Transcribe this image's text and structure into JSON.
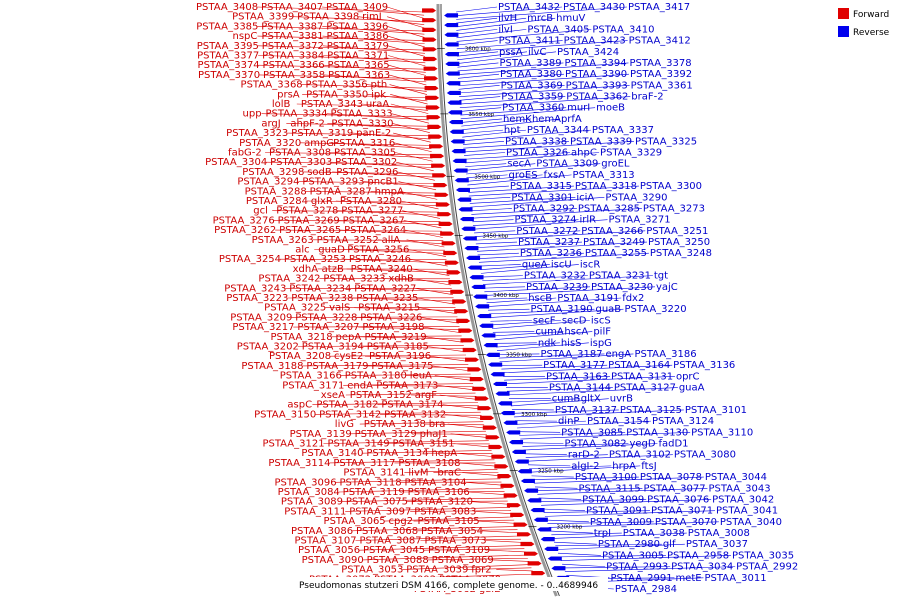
{
  "legend": {
    "items": [
      {
        "label": "Forward",
        "color": "#e00000"
      },
      {
        "label": "Reverse",
        "color": "#0000ee"
      }
    ]
  },
  "caption": "Pseudomonas stutzeri DSM 4166, complete genome. - 0..4689946",
  "colors": {
    "forward": "#e00000",
    "reverse": "#0000ee",
    "backbone": "#999999"
  },
  "ticks": [
    {
      "text": "3600 kbp",
      "pos": 0.075
    },
    {
      "text": "3550 kbp",
      "pos": 0.185
    },
    {
      "text": "3500 kbp",
      "pos": 0.29
    },
    {
      "text": "3450 kbp",
      "pos": 0.39
    },
    {
      "text": "3400 kbp",
      "pos": 0.49
    },
    {
      "text": "3350 kbp",
      "pos": 0.59
    },
    {
      "text": "3300 kbp",
      "pos": 0.69
    },
    {
      "text": "3250 kbp",
      "pos": 0.785
    },
    {
      "text": "3200 kbp",
      "pos": 0.88
    }
  ],
  "forward_genes": [
    "PSTAA_3408",
    "PSTAA_3407",
    "PSTAA_3409",
    "PSTAA_3399",
    "PSTAA_3398",
    "rimI",
    "PSTAA_3385",
    "PSTAA_3387",
    "PSTAA_3396",
    "nspC",
    "PSTAA_3381",
    "PSTAA_3386",
    "PSTAA_3395",
    "PSTAA_3372",
    "PSTAA_3379",
    "PSTAA_3377",
    "PSTAA_3384",
    "PSTAA_3371",
    "PSTAA_3374",
    "PSTAA_3366",
    "PSTAA_3365",
    "PSTAA_3370",
    "PSTAA_3358",
    "PSTAA_3363",
    "PSTAA_3368",
    "PSTAA_3356",
    "pth",
    "prsA",
    "PSTAA_3350",
    "ipk",
    "lolB",
    "PSTAA_3343",
    "uraA",
    "upp",
    "PSTAA_3334",
    "PSTAA_3333",
    "argJ",
    "ahpF-2",
    "PSTAA_3330",
    "PSTAA_3323",
    "PSTAA_3319",
    "panE-2",
    "PSTAA_3320",
    "ampG",
    "PSTAA_3316",
    "fabG-2",
    "PSTAA_3308",
    "PSTAA_3305",
    "PSTAA_3304",
    "PSTAA_3303",
    "PSTAA_3302",
    "PSTAA_3298",
    "sodB",
    "PSTAA_3296",
    "PSTAA_3294",
    "PSTAA_3293",
    "pncB1",
    "PSTAA_3288",
    "PSTAA_3287",
    "hmpA",
    "PSTAA_3284",
    "glxR",
    "PSTAA_3280",
    "gcl",
    "PSTAA_3278",
    "PSTAA_3277",
    "PSTAA_3276",
    "PSTAA_3269",
    "PSTAA_3267",
    "PSTAA_3262",
    "PSTAA_3265",
    "PSTAA_3264",
    "PSTAA_3263",
    "PSTAA_3252",
    "allA",
    "alc",
    "guaD",
    "PSTAA_3256",
    "PSTAA_3254",
    "PSTAA_3253",
    "PSTAA_3246",
    "xdhA",
    "atzB",
    "PSTAA_3240",
    "PSTAA_3242",
    "PSTAA_3233",
    "xdhB",
    "PSTAA_3243",
    "PSTAA_3234",
    "PSTAA_3227",
    "PSTAA_3223",
    "PSTAA_3238",
    "PSTAA_3235",
    "PSTAA_3225",
    "valS",
    "PSTAA_3215",
    "PSTAA_3209",
    "PSTAA_3228",
    "PSTAA_3226",
    "PSTAA_3217",
    "PSTAA_3207",
    "PSTAA_3198",
    "PSTAA_3218",
    "pepA",
    "PSTAA_3219",
    "PSTAA_3202",
    "PSTAA_3194",
    "PSTAA_3185",
    "PSTAA_3208",
    "cysE2",
    "PSTAA_3196",
    "PSTAA_3188",
    "PSTAA_3179",
    "PSTAA_3175",
    "PSTAA_3166",
    "PSTAA_3180",
    "leuA",
    "PSTAA_3171",
    "endA",
    "PSTAA_3173",
    "xseA",
    "PSTAA_3152",
    "argF",
    "aspC",
    "PSTAA_3182",
    "PSTAA_3174",
    "PSTAA_3150",
    "PSTAA_3142",
    "PSTAA_3132",
    "livG",
    "PSTAA_3138",
    "bra",
    "PSTAA_3139",
    "PSTAA_3129",
    "phaJ1",
    "PSTAA_3121",
    "PSTAA_3149",
    "PSTAA_3151",
    "PSTAA_3140",
    "PSTAA_3134",
    "hepA",
    "PSTAA_3114",
    "PSTAA_3117",
    "PSTAA_3108",
    "PSTAA_3141",
    "livM",
    "braC",
    "PSTAA_3096",
    "PSTAA_3118",
    "PSTAA_3104",
    "PSTAA_3084",
    "PSTAA_3119",
    "PSTAA_3106",
    "PSTAA_3089",
    "PSTAA_3075",
    "PSTAA_3120",
    "PSTAA_3111",
    "PSTAA_3097",
    "PSTAA_3083",
    "PSTAA_3065",
    "cpg2",
    "PSTAA_3105",
    "PSTAA_3086",
    "PSTAA_3068",
    "PSTAA_3054",
    "PSTAA_3107",
    "PSTAA_3087",
    "PSTAA_3073",
    "PSTAA_3056",
    "PSTAA_3045",
    "PSTAA_3109",
    "PSTAA_3090",
    "PSTAA_3088",
    "PSTAA_3069",
    "PSTAA_3053",
    "PSTAA_3039",
    "fpr2",
    "PSTAA_3072",
    "PSTAA_3092",
    "PSTAA_3079",
    "PSTAA_3062",
    "galE"
  ],
  "reverse_genes": [
    "PSTAA_3432",
    "PSTAA_3430",
    "PSTAA_3417",
    "ilvH",
    "mrcB",
    "hmuV",
    "ilvI",
    "PSTAA_3405",
    "PSTAA_3410",
    "PSTAA_3411",
    "PSTAA_3423",
    "PSTAA_3412",
    "pssA",
    "ilvC",
    "PSTAA_3424",
    "PSTAA_3389",
    "PSTAA_3394",
    "PSTAA_3378",
    "PSTAA_3380",
    "PSTAA_3390",
    "PSTAA_3392",
    "PSTAA_3369",
    "PSTAA_3393",
    "PSTAA_3361",
    "PSTAA_3359",
    "PSTAA_3362",
    "braF-2",
    "PSTAA_3360",
    "murI",
    "moeB",
    "hemK",
    "hemA",
    "prfA",
    "hpt",
    "PSTAA_3344",
    "PSTAA_3337",
    "PSTAA_3338",
    "PSTAA_3339",
    "PSTAA_3325",
    "PSTAA_3326",
    "ahpC",
    "PSTAA_3329",
    "secA",
    "PSTAA_3309",
    "groEL",
    "groES",
    "fxsA",
    "PSTAA_3313",
    "PSTAA_3315",
    "PSTAA_3318",
    "PSTAA_3300",
    "PSTAA_3301",
    "iciA",
    "PSTAA_3290",
    "PSTAA_3292",
    "PSTAA_3285",
    "PSTAA_3273",
    "PSTAA_3274",
    "irlR",
    "PSTAA_3271",
    "PSTAA_3272",
    "PSTAA_3266",
    "PSTAA_3251",
    "PSTAA_3237",
    "PSTAA_3249",
    "PSTAA_3250",
    "PSTAA_3236",
    "PSTAA_3255",
    "PSTAA_3248",
    "queA",
    "iscU",
    "iscR",
    "PSTAA_3232",
    "PSTAA_3231",
    "tgt",
    "PSTAA_3239",
    "PSTAA_3230",
    "yajC",
    "hscB",
    "PSTAA_3191",
    "fdx2",
    "PSTAA_3190",
    "guaB",
    "PSTAA_3220",
    "secF",
    "secD",
    "iscS",
    "cumA",
    "hscA",
    "pilF",
    "ndk",
    "hisS",
    "ispG",
    "PSTAA_3187",
    "engA",
    "PSTAA_3186",
    "PSTAA_3177",
    "PSTAA_3164",
    "PSTAA_3136",
    "PSTAA_3163",
    "PSTAA_3131",
    "oprC",
    "PSTAA_3144",
    "PSTAA_3127",
    "guaA",
    "cumB",
    "gltX",
    "uvrB",
    "PSTAA_3137",
    "PSTAA_3125",
    "PSTAA_3101",
    "dinP",
    "PSTAA_3154",
    "PSTAA_3124",
    "PSTAA_3085",
    "PSTAA_3130",
    "PSTAA_3110",
    "PSTAA_3082",
    "yegD",
    "fadD1",
    "rarD-2",
    "PSTAA_3102",
    "PSTAA_3080",
    "algI-2",
    "hrpA",
    "ftsJ",
    "PSTAA_3100",
    "PSTAA_3078",
    "PSTAA_3044",
    "PSTAA_3115",
    "PSTAA_3077",
    "PSTAA_3043",
    "PSTAA_3099",
    "PSTAA_3076",
    "PSTAA_3042",
    "PSTAA_3091",
    "PSTAA_3071",
    "PSTAA_3041",
    "PSTAA_3009",
    "PSTAA_3070",
    "PSTAA_3040",
    "trpI",
    "PSTAA_3038",
    "PSTAA_3008",
    "PSTAA_2980",
    "glf",
    "PSTAA_3037",
    "PSTAA_3005",
    "PSTAA_2958",
    "PSTAA_3035",
    "PSTAA_2993",
    "PSTAA_3034",
    "PSTAA_2992",
    "PSTAA_2991",
    "metE",
    "PSTAA_3011",
    "PSTAA_2984"
  ]
}
